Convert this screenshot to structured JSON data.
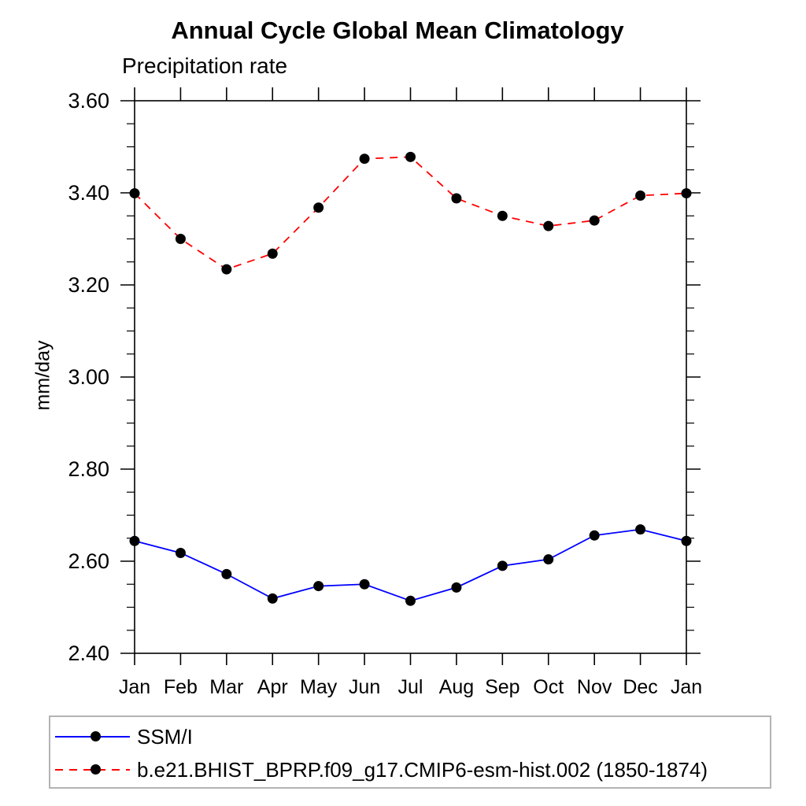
{
  "title": "Annual Cycle Global Mean Climatology",
  "subtitle": "Precipitation rate",
  "chart_data": {
    "type": "line",
    "x_categories": [
      "Jan",
      "Feb",
      "Mar",
      "Apr",
      "May",
      "Jun",
      "Jul",
      "Aug",
      "Sep",
      "Oct",
      "Nov",
      "Dec",
      "Jan"
    ],
    "xlabel": "",
    "ylabel": "mm/day",
    "ylim": [
      2.4,
      3.6
    ],
    "y_tick_labels": [
      "2.40",
      "2.60",
      "2.80",
      "3.00",
      "3.20",
      "3.40",
      "3.60"
    ],
    "y_minor_step": 0.05,
    "grid": false,
    "frame_color": "#000000",
    "legend_position": "bottom-left",
    "series": [
      {
        "name": "SSM/I",
        "color": "#0000ff",
        "line_style": "solid",
        "marker": "filled-circle",
        "marker_color": "#000000",
        "values": [
          2.644,
          2.618,
          2.572,
          2.519,
          2.546,
          2.55,
          2.514,
          2.543,
          2.59,
          2.604,
          2.656,
          2.669,
          2.644
        ]
      },
      {
        "name": "b.e21.BHIST_BPRP.f09_g17.CMIP6-esm-hist.002 (1850-1874)",
        "color": "#ff0000",
        "line_style": "dashed",
        "marker": "filled-circle",
        "marker_color": "#000000",
        "values": [
          3.399,
          3.3,
          3.234,
          3.268,
          3.368,
          3.474,
          3.478,
          3.388,
          3.35,
          3.328,
          3.34,
          3.394,
          3.399
        ]
      }
    ]
  }
}
